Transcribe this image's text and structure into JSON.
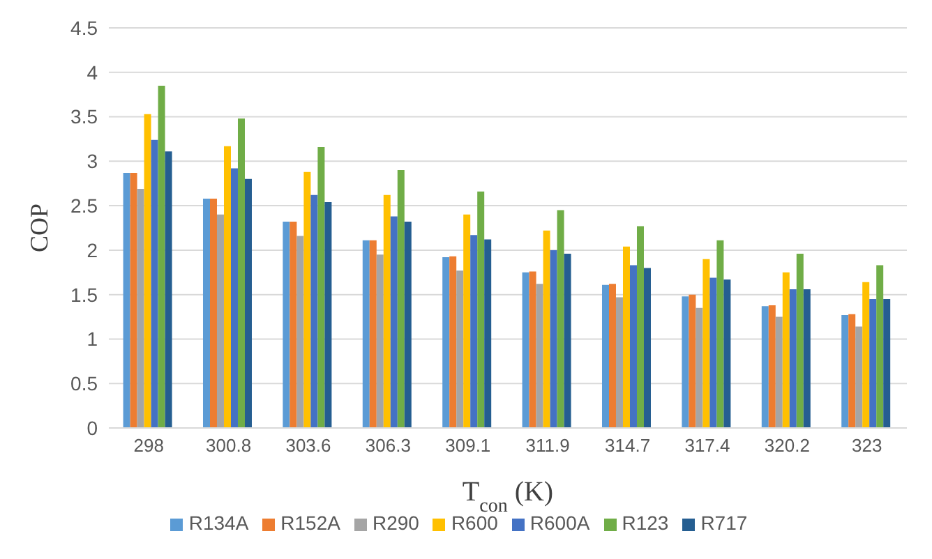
{
  "chart_data": {
    "type": "bar",
    "xlabel": "T$_{con}$ (K)",
    "ylabel": "COP",
    "categories": [
      "298",
      "300.8",
      "303.6",
      "306.3",
      "309.1",
      "311.9",
      "314.7",
      "317.4",
      "320.2",
      "323"
    ],
    "series": [
      {
        "name": "R134A",
        "color": "#5b9bd5",
        "values": [
          2.87,
          2.58,
          2.32,
          2.11,
          1.92,
          1.75,
          1.61,
          1.48,
          1.37,
          1.27
        ]
      },
      {
        "name": "R152A",
        "color": "#ed7d31",
        "values": [
          2.87,
          2.58,
          2.32,
          2.11,
          1.93,
          1.76,
          1.62,
          1.5,
          1.38,
          1.28
        ]
      },
      {
        "name": "R290",
        "color": "#a5a5a5",
        "values": [
          2.69,
          2.4,
          2.16,
          1.95,
          1.77,
          1.62,
          1.47,
          1.35,
          1.25,
          1.14
        ]
      },
      {
        "name": "R600",
        "color": "#ffc000",
        "values": [
          3.53,
          3.17,
          2.88,
          2.62,
          2.4,
          2.22,
          2.04,
          1.9,
          1.75,
          1.64
        ]
      },
      {
        "name": "R600A",
        "color": "#4472c4",
        "values": [
          3.24,
          2.92,
          2.62,
          2.38,
          2.17,
          2,
          1.83,
          1.69,
          1.56,
          1.45
        ]
      },
      {
        "name": "R123",
        "color": "#70ad47",
        "values": [
          3.85,
          3.48,
          3.16,
          2.9,
          2.66,
          2.45,
          2.27,
          2.11,
          1.96,
          1.83
        ]
      },
      {
        "name": "R717",
        "color": "#255e91",
        "values": [
          3.11,
          2.8,
          2.54,
          2.32,
          2.12,
          1.96,
          1.8,
          1.67,
          1.56,
          1.45
        ]
      }
    ],
    "ylim": [
      0,
      4.5
    ],
    "yticks": [
      0,
      0.5,
      1,
      1.5,
      2,
      2.5,
      3,
      3.5,
      4,
      4.5
    ],
    "grid": "y",
    "legend": "bottom"
  }
}
